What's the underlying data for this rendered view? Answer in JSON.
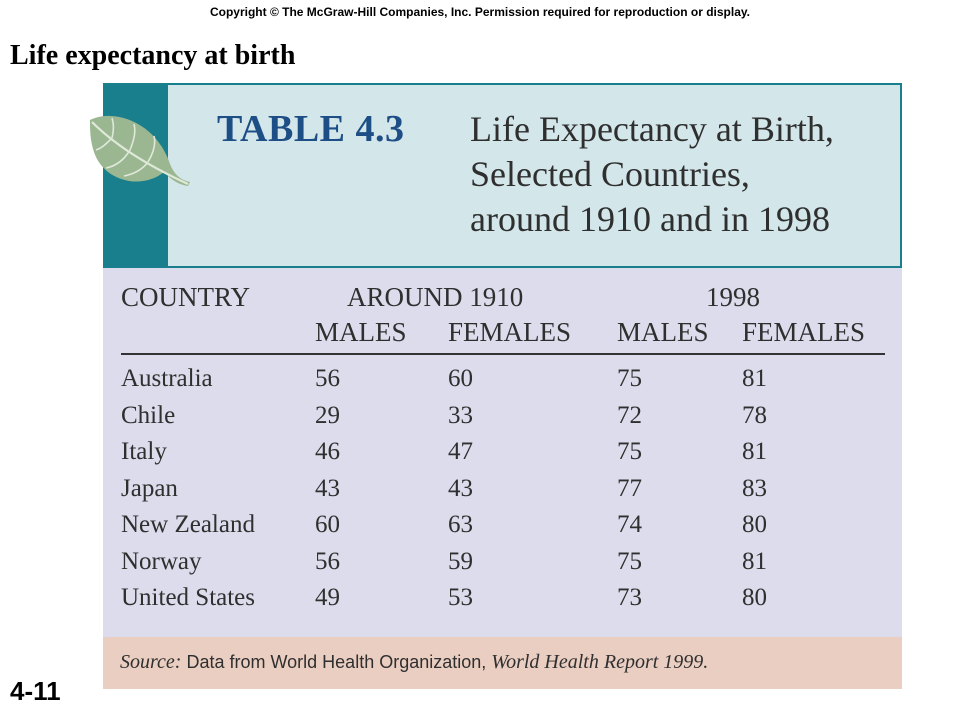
{
  "copyright": "Copyright © The McGraw-Hill Companies, Inc. Permission required for reproduction or display.",
  "slide_title": "Life expectancy at birth",
  "slide_number": "4-11",
  "table": {
    "label": "TABLE 4.3",
    "title_lines": [
      "Life Expectancy at Birth,",
      "Selected Countries,",
      "around 1910 and in 1998"
    ],
    "group_headers": {
      "country": "COUNTRY",
      "period1": "AROUND 1910",
      "period2": "1998"
    },
    "sub_headers": [
      "MALES",
      "FEMALES",
      "MALES",
      "FEMALES"
    ],
    "rows": [
      {
        "country": "Australia",
        "values": [
          "56",
          "60",
          "75",
          "81"
        ]
      },
      {
        "country": "Chile",
        "values": [
          "29",
          "33",
          "72",
          "78"
        ]
      },
      {
        "country": "Italy",
        "values": [
          "46",
          "47",
          "75",
          "81"
        ]
      },
      {
        "country": "Japan",
        "values": [
          "43",
          "43",
          "77",
          "83"
        ]
      },
      {
        "country": "New Zealand",
        "values": [
          "60",
          "63",
          "74",
          "80"
        ]
      },
      {
        "country": "Norway",
        "values": [
          "56",
          "59",
          "75",
          "81"
        ]
      },
      {
        "country": "United States",
        "values": [
          "49",
          "53",
          "73",
          "80"
        ]
      }
    ],
    "source": {
      "label": "Source:",
      "text": " Data from World Health Organization, ",
      "report": "World Health Report 1999."
    }
  },
  "colors": {
    "teal": "#197f8c",
    "header_bg": "#d3e6ea",
    "body_bg": "#dcdcec",
    "source_bg": "#ebcec2",
    "label_blue": "#1d4e86"
  }
}
